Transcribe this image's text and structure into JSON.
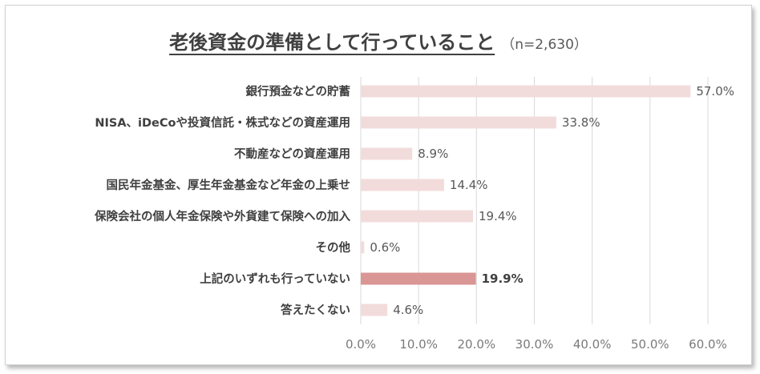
{
  "colors": {
    "bar": "#f2dcdb",
    "bar_highlight": "#d99694",
    "grid": "#d9d9d9"
  },
  "chart_data": {
    "type": "bar",
    "orientation": "horizontal",
    "title": "老後資金の準備として行っていること",
    "subtitle": "（n=2,630）",
    "categories": [
      "銀行預金などの貯蓄",
      "NISA、iDeCoや投資信託・株式などの資産運用",
      "不動産などの資産運用",
      "国民年金基金、厚生年金基金など年金の上乗せ",
      "保険会社の個人年金保険や外貨建て保険への加入",
      "その他",
      "上記のいずれも行っていない",
      "答えたくない"
    ],
    "values": [
      57.0,
      33.8,
      8.9,
      14.4,
      19.4,
      0.6,
      19.9,
      4.6
    ],
    "value_labels": [
      "57.0%",
      "33.8%",
      "8.9%",
      "14.4%",
      "19.4%",
      "0.6%",
      "19.9%",
      "4.6%"
    ],
    "highlight_index": 6,
    "xlim": [
      0,
      60
    ],
    "ticks": [
      "0.0%",
      "10.0%",
      "20.0%",
      "30.0%",
      "40.0%",
      "50.0%",
      "60.0%"
    ],
    "grid": true
  }
}
